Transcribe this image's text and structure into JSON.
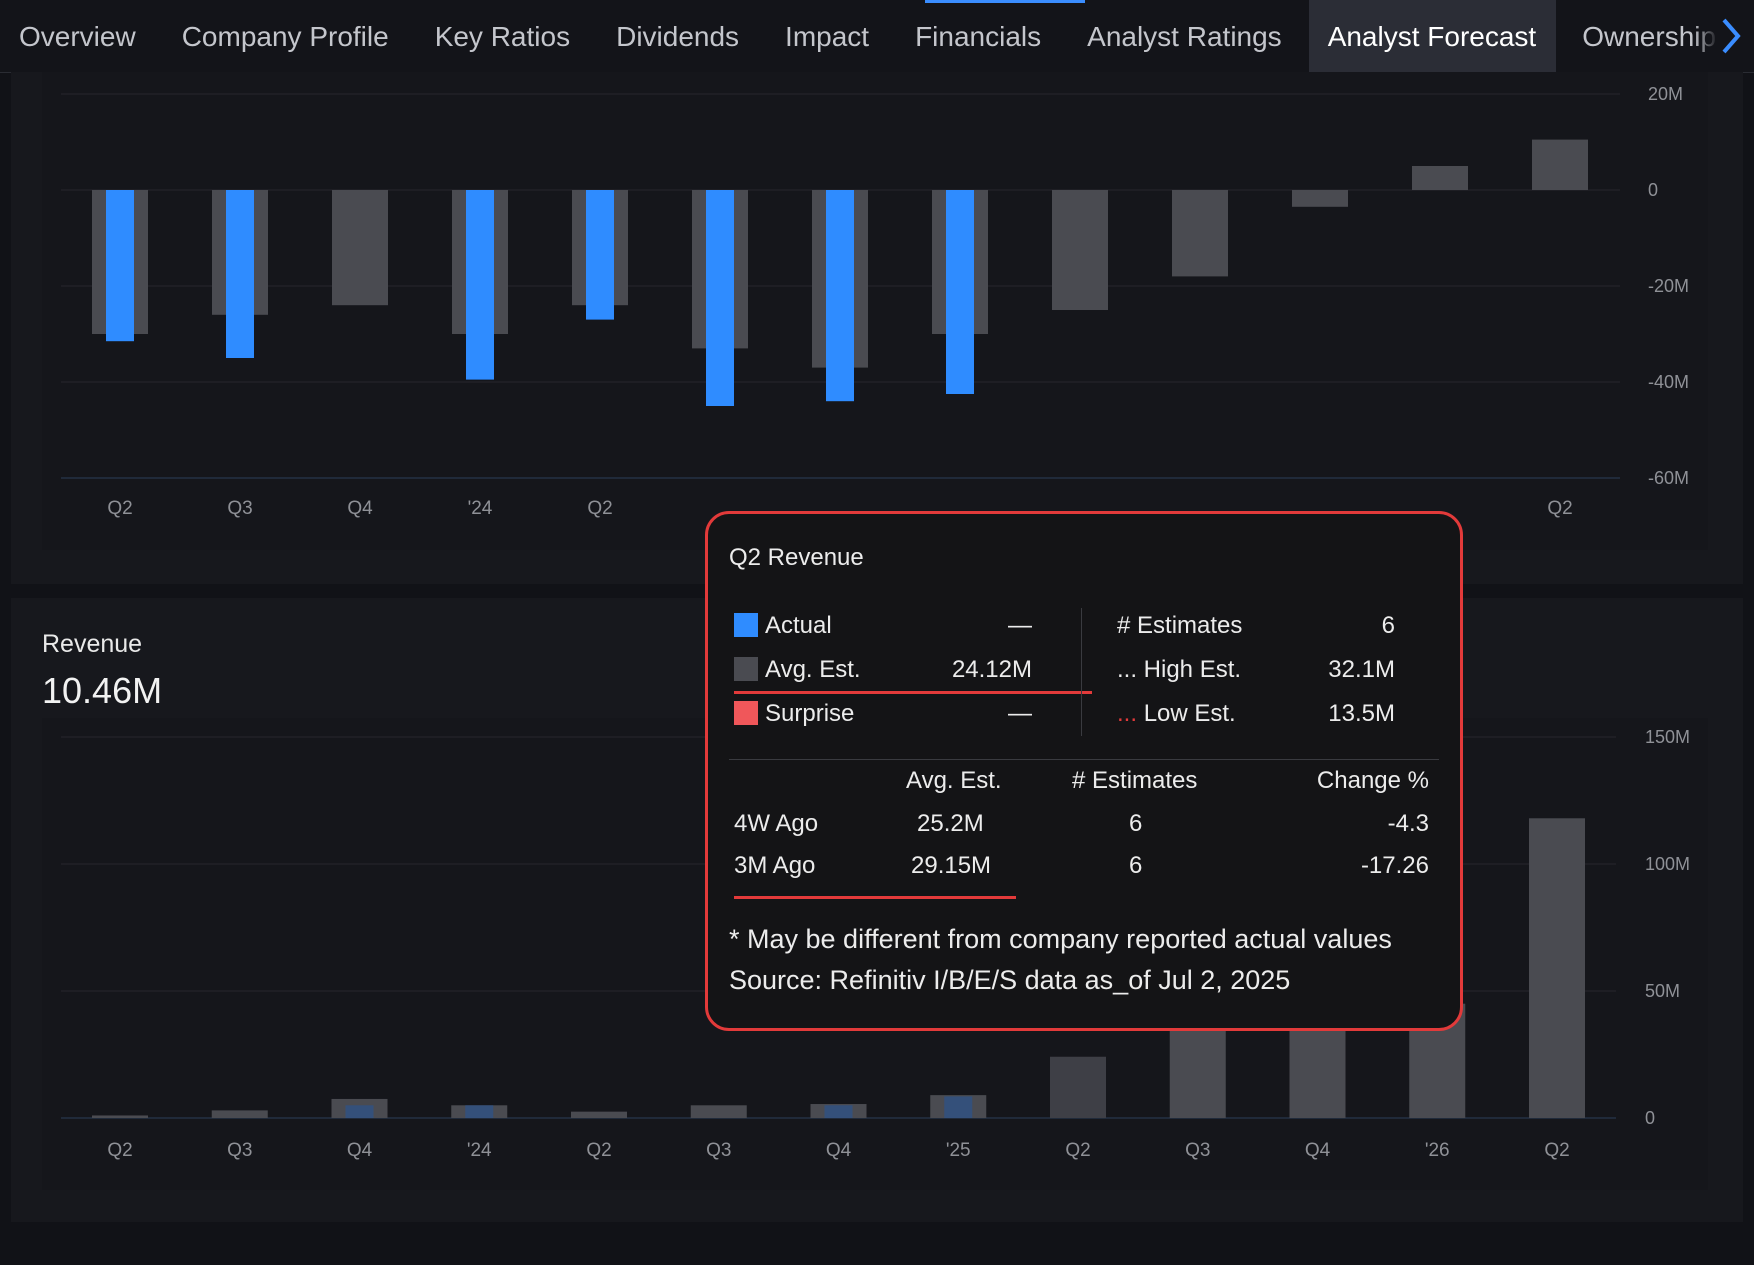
{
  "tabs": [
    {
      "label": "Overview"
    },
    {
      "label": "Company Profile"
    },
    {
      "label": "Key Ratios"
    },
    {
      "label": "Dividends"
    },
    {
      "label": "Impact"
    },
    {
      "label": "Financials"
    },
    {
      "label": "Analyst Ratings"
    },
    {
      "label": "Analyst Forecast"
    },
    {
      "label": "Ownership"
    }
  ],
  "active_tab": "Analyst Forecast",
  "next_icon": "chevron-right-icon",
  "revenue_card": {
    "title": "Revenue",
    "value": "10.46M"
  },
  "colors": {
    "actual": "#2f8cff",
    "estimate": "#4a4b51",
    "surprise": "#f0575a",
    "accent": "#e23a3a"
  },
  "chart_data": [
    {
      "type": "bar",
      "title": "",
      "categories": [
        "Q2",
        "Q3",
        "Q4",
        "'24",
        "Q2",
        "Q3",
        "Q4",
        "'25",
        "Q2",
        "Q3",
        "Q4",
        "'26",
        "Q2"
      ],
      "visible_tick_labels": [
        "Q2",
        "Q3",
        "Q4",
        "'24",
        "Q2",
        "",
        "",
        "",
        "",
        "",
        "",
        "",
        "Q2"
      ],
      "series": [
        {
          "name": "Avg. Est.",
          "values": [
            -30,
            -26,
            -24,
            -30,
            -24,
            -33,
            -37,
            -30,
            -25,
            -18,
            -3.5,
            5,
            10.5
          ]
        },
        {
          "name": "Actual",
          "values": [
            -31.5,
            -35,
            null,
            -39.5,
            -27,
            -45,
            -44,
            -42.5,
            null,
            null,
            null,
            null,
            null
          ]
        }
      ],
      "yticks": [
        "20M",
        "0",
        "-20M",
        "-40M",
        "-60M"
      ],
      "ylim": [
        -60,
        20
      ],
      "yunit": "M",
      "grid": true
    },
    {
      "type": "bar",
      "title": "Revenue",
      "categories": [
        "Q2",
        "Q3",
        "Q4",
        "'24",
        "Q2",
        "Q3",
        "Q4",
        "'25",
        "Q2",
        "Q3",
        "Q4",
        "'26",
        "Q2"
      ],
      "series": [
        {
          "name": "Avg. Est.",
          "values": [
            1,
            3,
            7.5,
            5,
            2.5,
            5,
            5.5,
            9,
            24.12,
            36,
            40,
            45,
            118
          ]
        },
        {
          "name": "Actual",
          "values": [
            null,
            null,
            5,
            5,
            null,
            null,
            5,
            8.5,
            null,
            null,
            null,
            null,
            null
          ]
        }
      ],
      "yticks": [
        "150M",
        "100M",
        "50M",
        "0"
      ],
      "ylim": [
        0,
        150
      ],
      "yunit": "M",
      "grid": true
    }
  ],
  "tooltip": {
    "title": "Q2 Revenue",
    "legend": [
      {
        "label": "Actual",
        "value": "—"
      },
      {
        "label": "Avg. Est.",
        "value": "24.12M"
      },
      {
        "label": "Surprise",
        "value": "—"
      }
    ],
    "estimates": [
      {
        "label": "# Estimates",
        "value": "6"
      },
      {
        "label": "... High Est.",
        "value": "32.1M"
      },
      {
        "label": "Low Est.",
        "value": "13.5M"
      }
    ],
    "low_prefix": "...",
    "history_headers": [
      "Avg. Est.",
      "# Estimates",
      "Change %"
    ],
    "history": [
      {
        "period": "4W Ago",
        "avg": "25.2M",
        "count": "6",
        "change": "-4.3"
      },
      {
        "period": "3M Ago",
        "avg": "29.15M",
        "count": "6",
        "change": "-17.26"
      }
    ],
    "note": "* May be different from company reported actual values",
    "source": "Source: Refinitiv I/B/E/S data as_of Jul 2, 2025"
  }
}
